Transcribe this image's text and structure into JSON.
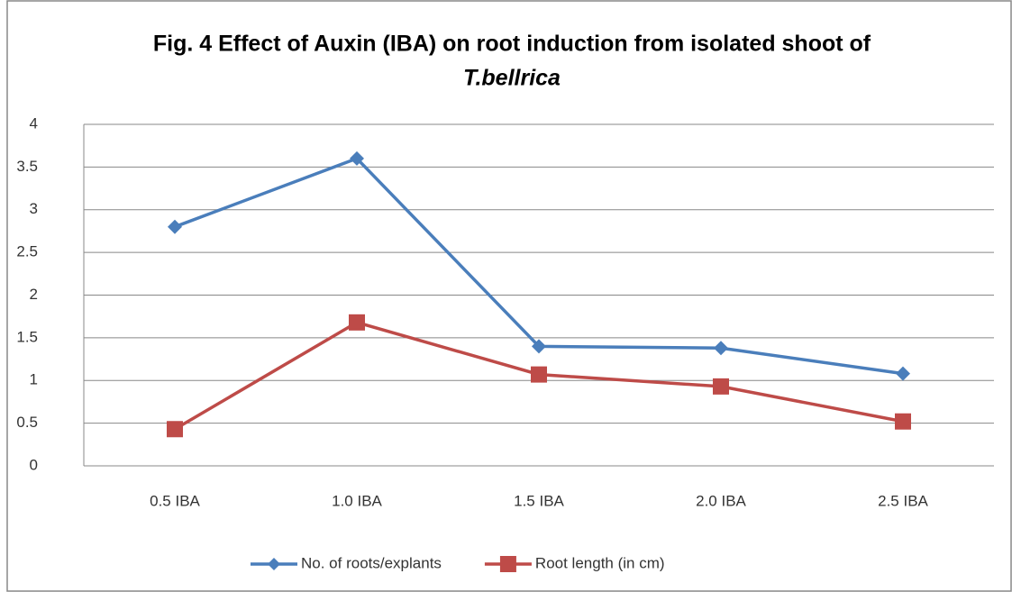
{
  "chart_data": {
    "type": "line",
    "title": [
      "Fig. 4  Effect of Auxin (IBA) on root induction from isolated shoot of",
      "T.bellrica"
    ],
    "categories": [
      "0.5 IBA",
      "1.0 IBA",
      "1.5 IBA",
      "2.0 IBA",
      "2.5 IBA"
    ],
    "series": [
      {
        "name": "No. of roots/explants",
        "color": "#4a7ebb",
        "marker": "diamond",
        "values": [
          2.8,
          3.6,
          1.4,
          1.38,
          1.08
        ]
      },
      {
        "name": "Root length (in  cm)",
        "color": "#be4b48",
        "marker": "square",
        "values": [
          0.43,
          1.68,
          1.07,
          0.93,
          0.52
        ]
      }
    ],
    "ylim": [
      0,
      4
    ],
    "yticks": [
      0,
      0.5,
      1,
      1.5,
      2,
      2.5,
      3,
      3.5,
      4
    ],
    "grid": true,
    "legend": "bottom"
  }
}
